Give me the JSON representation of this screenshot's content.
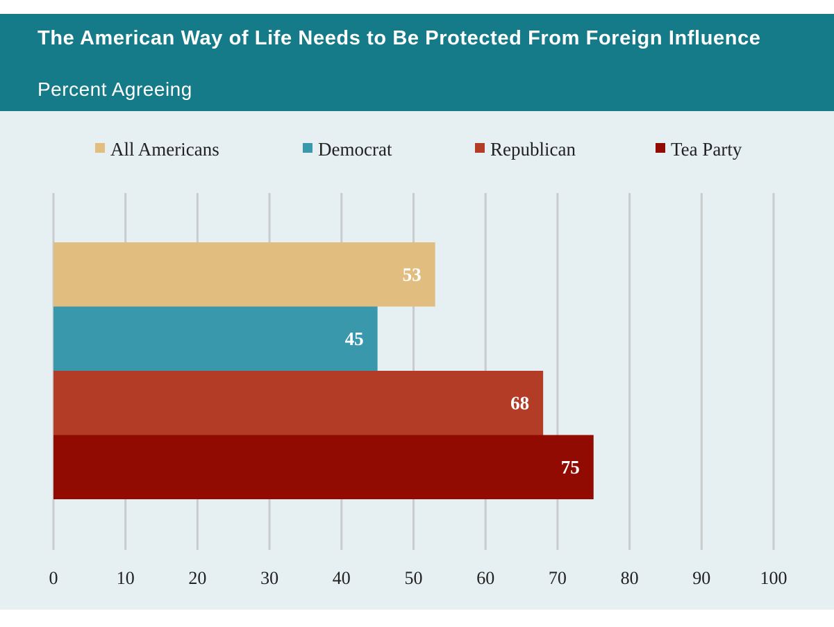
{
  "chart_data": {
    "type": "bar",
    "orientation": "horizontal",
    "title": "The American Way of Life Needs to Be Protected From Foreign Influence",
    "subtitle": "Percent Agreeing",
    "categories": [
      "All Americans",
      "Democrat",
      "Republican",
      "Tea Party"
    ],
    "values": [
      53,
      45,
      68,
      75
    ],
    "colors": [
      "#e2bd80",
      "#3a98ad",
      "#b33c27",
      "#920b03"
    ],
    "xlim": [
      0,
      100
    ],
    "xticks": [
      0,
      10,
      20,
      30,
      40,
      50,
      60,
      70,
      80,
      90,
      100
    ],
    "grid": true,
    "legend": "top"
  }
}
